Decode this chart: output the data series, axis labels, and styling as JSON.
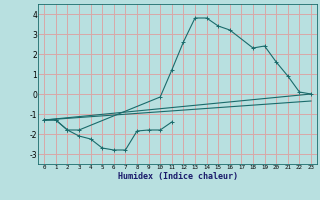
{
  "xlabel": "Humidex (Indice chaleur)",
  "xlim": [
    -0.5,
    23.5
  ],
  "ylim": [
    -3.5,
    4.5
  ],
  "xticks": [
    0,
    1,
    2,
    3,
    4,
    5,
    6,
    7,
    8,
    9,
    10,
    11,
    12,
    13,
    14,
    15,
    16,
    17,
    18,
    19,
    20,
    21,
    22,
    23
  ],
  "yticks": [
    -3,
    -2,
    -1,
    0,
    1,
    2,
    3,
    4
  ],
  "bg_color": "#b8e0e0",
  "grid_color": "#d8a8a8",
  "line_color": "#1a6b6b",
  "series": [
    {
      "x": [
        0,
        1,
        2,
        3,
        4,
        5,
        6,
        7,
        8,
        9,
        10,
        11
      ],
      "y": [
        -1.3,
        -1.3,
        -1.8,
        -2.1,
        -2.25,
        -2.7,
        -2.8,
        -2.8,
        -1.85,
        -1.8,
        -1.8,
        -1.4
      ],
      "marker": true
    },
    {
      "x": [
        0,
        1,
        2,
        3,
        10,
        11,
        12,
        13,
        14,
        15,
        16,
        18,
        19,
        20,
        21,
        22,
        23
      ],
      "y": [
        -1.3,
        -1.3,
        -1.8,
        -1.8,
        -0.15,
        1.2,
        2.6,
        3.8,
        3.8,
        3.4,
        3.2,
        2.3,
        2.4,
        1.6,
        0.9,
        0.1,
        0.0
      ],
      "marker": true
    },
    {
      "x": [
        0,
        23
      ],
      "y": [
        -1.3,
        0.0
      ],
      "marker": false
    },
    {
      "x": [
        0,
        23
      ],
      "y": [
        -1.3,
        -0.35
      ],
      "marker": false
    }
  ]
}
